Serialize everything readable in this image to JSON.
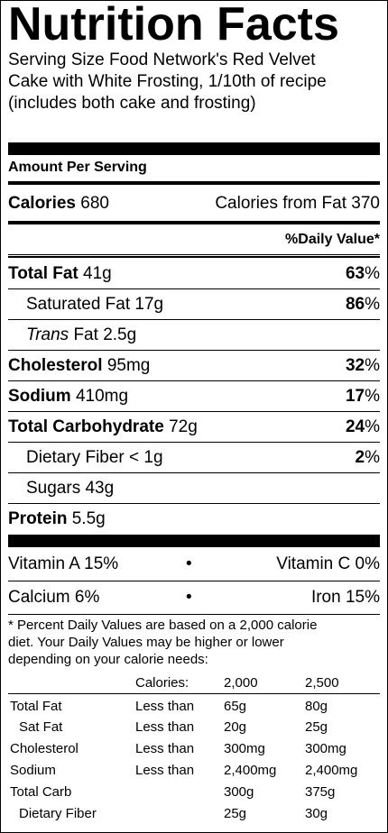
{
  "title": "Nutrition Facts",
  "serving_lines": [
    "Serving Size Food Network's Red Velvet",
    "Cake with White Frosting, 1/10th of recipe",
    "(includes both cake and frosting)"
  ],
  "amount_per_serving": "Amount Per Serving",
  "calories": {
    "label": "Calories",
    "value": "680",
    "from_fat_label": "Calories from Fat",
    "from_fat_value": "370"
  },
  "daily_value_header": "%Daily Value*",
  "nutrients": [
    {
      "label": "Total Fat",
      "amount": "41g",
      "dv": "63",
      "pct": "%"
    },
    {
      "label": "Saturated Fat",
      "amount": "17g",
      "dv": "86",
      "pct": "%"
    },
    {
      "label_italic": "Trans",
      "label": "Fat",
      "amount": "2.5g"
    },
    {
      "label": "Cholesterol",
      "amount": "95mg",
      "dv": "32",
      "pct": "%"
    },
    {
      "label": "Sodium",
      "amount": "410mg",
      "dv": "17",
      "pct": "%"
    },
    {
      "label": "Total Carbohydrate",
      "amount": "72g",
      "dv": "24",
      "pct": "%"
    },
    {
      "label": "Dietary Fiber",
      "amount": "< 1g",
      "dv": "2",
      "pct": "%"
    },
    {
      "label": "Sugars",
      "amount": "43g"
    },
    {
      "label": "Protein",
      "amount": "5.5g"
    }
  ],
  "vitamins": {
    "a": "Vitamin A 15%",
    "c": "Vitamin C 0%",
    "calcium": "Calcium 6%",
    "iron": "Iron 15%",
    "bullet": "•"
  },
  "footnote": [
    "* Percent Daily Values are based on a 2,000 calorie",
    "diet. Your Daily Values may be higher or lower",
    "depending on your calorie needs:"
  ],
  "table": {
    "header": [
      "Calories:",
      "2,000",
      "2,500"
    ],
    "rows": [
      [
        "Total Fat",
        "Less than",
        "65g",
        "80g"
      ],
      [
        "Sat Fat",
        "Less than",
        "20g",
        "25g"
      ],
      [
        "Cholesterol",
        "Less than",
        "300mg",
        "300mg"
      ],
      [
        "Sodium",
        "Less than",
        "2,400mg",
        "2,400mg"
      ],
      [
        "Total Carb",
        "",
        "300g",
        "375g"
      ],
      [
        "Dietary Fiber",
        "",
        "25g",
        "30g"
      ]
    ]
  }
}
